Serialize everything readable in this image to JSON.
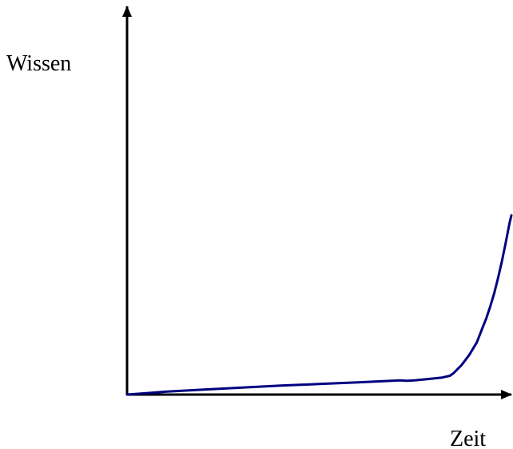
{
  "chart_data": {
    "type": "line",
    "xlabel": "Zeit",
    "ylabel": "Wissen",
    "grid": false,
    "axis_color": "#000000",
    "series": [
      {
        "color": "#000080",
        "x": [
          0,
          5,
          10,
          20,
          30,
          40,
          50,
          60,
          70,
          71,
          73,
          75,
          78,
          82,
          84,
          85,
          87,
          89,
          91,
          92.5,
          93.5,
          94.5,
          95.5,
          96.5,
          97.5,
          98.5,
          99.5,
          100
        ],
        "y": [
          0,
          0.8,
          1.6,
          2.8,
          3.9,
          5.0,
          5.9,
          6.8,
          7.8,
          7.9,
          7.7,
          8.0,
          8.6,
          9.5,
          10.5,
          12.0,
          16.4,
          22.0,
          29.1,
          37.3,
          42.7,
          49.1,
          56.4,
          64.8,
          74.1,
          84.5,
          95.5,
          100
        ]
      }
    ]
  }
}
